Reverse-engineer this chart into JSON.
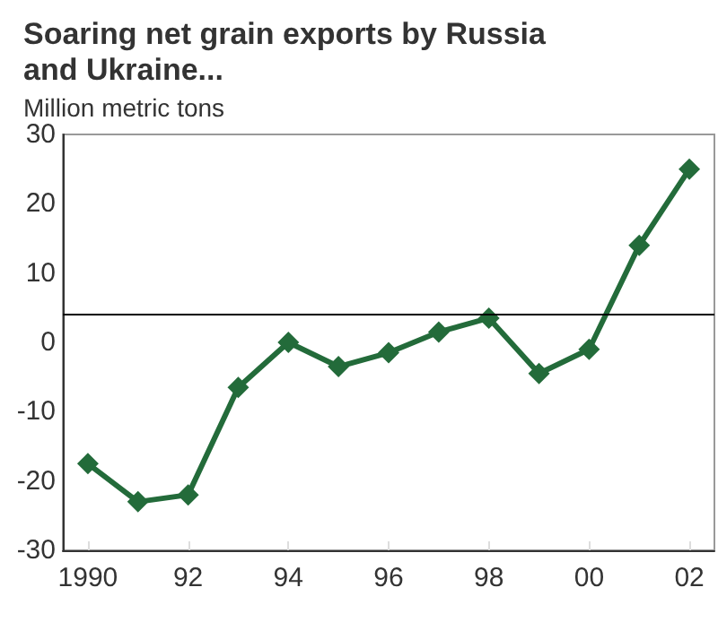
{
  "chart_data": {
    "type": "line",
    "title": "Soaring net grain exports by Russia\nand Ukraine...",
    "ylabel": "Million metric tons",
    "x": [
      1990,
      1991,
      1992,
      1993,
      1994,
      1995,
      1996,
      1997,
      1998,
      1999,
      2000,
      2001,
      2002
    ],
    "series": [
      {
        "color": "#236b3a",
        "values": [
          -17.5,
          -23,
          -22,
          -6.5,
          0,
          -3.5,
          -1.5,
          1.5,
          3.5,
          -4.5,
          -1,
          14,
          25
        ]
      }
    ],
    "xlim": [
      1989.5,
      2002.5
    ],
    "xticks": [
      {
        "value": 1990,
        "label": "1990"
      },
      {
        "value": 1992,
        "label": "92"
      },
      {
        "value": 1994,
        "label": "94"
      },
      {
        "value": 1996,
        "label": "96"
      },
      {
        "value": 1998,
        "label": "98"
      },
      {
        "value": 2000,
        "label": "00"
      },
      {
        "value": 2002,
        "label": "02"
      }
    ],
    "ylim": [
      -30,
      30
    ],
    "yticks": [
      -30,
      -20,
      -10,
      0,
      10,
      20,
      30
    ],
    "ref_lines": [
      {
        "axis": "y",
        "value": 4,
        "color": "#000000"
      }
    ],
    "marker": "diamond",
    "line_style": "solid",
    "grid": false
  }
}
